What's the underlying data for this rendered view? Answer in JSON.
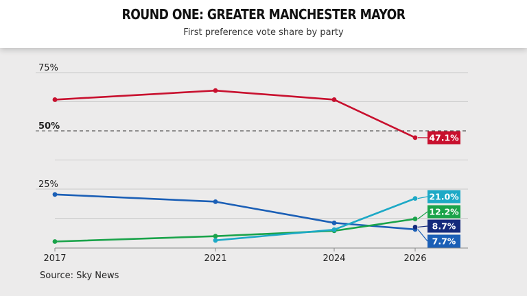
{
  "header": {
    "title": "ROUND ONE: GREATER MANCHESTER MAYOR",
    "subtitle": "First preference vote share by party"
  },
  "source": "Source: Sky News",
  "chart_data": {
    "type": "line",
    "title": "ROUND ONE: GREATER MANCHESTER MAYOR",
    "subtitle": "First preference vote share by party",
    "x": [
      2017,
      2021,
      2024,
      2026
    ],
    "x_tick_labels": [
      "2017",
      "2021",
      "2024",
      "2026"
    ],
    "ylim": [
      0,
      80
    ],
    "y_ticks": [
      {
        "value": 25,
        "label": "25%"
      },
      {
        "value": 50,
        "label": "50%"
      },
      {
        "value": 75,
        "label": "75%"
      }
    ],
    "grid": true,
    "reference_line": {
      "value": 50,
      "style": "dashed"
    },
    "series": [
      {
        "color": "#c8102e",
        "x": [
          2017,
          2021,
          2024,
          2026
        ],
        "values": [
          63.4,
          67.3,
          63.4,
          47.1
        ],
        "end_label": "47.1%"
      },
      {
        "color": "#1b5fb6",
        "x": [
          2017,
          2021,
          2024,
          2026
        ],
        "values": [
          22.7,
          19.6,
          10.5,
          7.7
        ],
        "end_label": "7.7%"
      },
      {
        "color": "#1aa34a",
        "x": [
          2017,
          2021,
          2024,
          2026
        ],
        "values": [
          2.5,
          4.8,
          7.1,
          12.2
        ],
        "end_label": "12.2%"
      },
      {
        "color": "#1da9c6",
        "x": [
          2021,
          2024,
          2026
        ],
        "values": [
          3.0,
          7.6,
          21.0
        ],
        "end_label": "21.0%"
      },
      {
        "color": "#152a7c",
        "x": [
          2026
        ],
        "values": [
          8.7
        ],
        "end_label": "8.7%"
      }
    ]
  }
}
